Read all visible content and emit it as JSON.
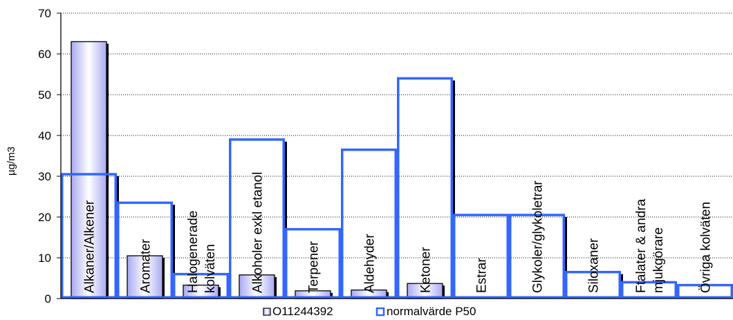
{
  "chart_data": {
    "type": "bar",
    "ylabel": "µg/m3",
    "ylim": [
      0,
      70
    ],
    "yticks": [
      0,
      10,
      20,
      30,
      40,
      50,
      60,
      70
    ],
    "grid": true,
    "legend_position": "bottom",
    "categories": [
      "Alkaner/Alkener",
      "Aromater",
      "Halogenerade kolväten",
      "Alkoholer exkl etanol",
      "Terpener",
      "Aldehyder",
      "Ketoner",
      "Estrar",
      "Glykoler/glykoletrar",
      "Siloxaner",
      "Ftalater & andra mjukgörare",
      "Övriga kolväten"
    ],
    "category_label_lines": [
      [
        "Alkaner/Alkener"
      ],
      [
        "Aromater"
      ],
      [
        "Halogenerade",
        "kolväten"
      ],
      [
        "Alkoholer exkl etanol"
      ],
      [
        "Terpener"
      ],
      [
        "Aldehyder"
      ],
      [
        "Ketoner"
      ],
      [
        "Estrar"
      ],
      [
        "Glykoler/glykoletrar"
      ],
      [
        "Siloxaner"
      ],
      [
        "Ftalater & andra",
        "mjukgörare"
      ],
      [
        "Övriga kolväten"
      ]
    ],
    "series": [
      {
        "name": "O11244392",
        "style": "bar",
        "color": "#9999ee",
        "values": [
          63,
          10.5,
          3.3,
          5.8,
          1.9,
          2.1,
          3.7,
          0,
          0,
          0,
          0,
          0
        ]
      },
      {
        "name": "normalvärde P50",
        "style": "step",
        "color": "#3366ff",
        "values": [
          30.5,
          23.5,
          6,
          39,
          17,
          36.5,
          54,
          20.5,
          20.5,
          6.5,
          4,
          3.3
        ]
      }
    ]
  }
}
